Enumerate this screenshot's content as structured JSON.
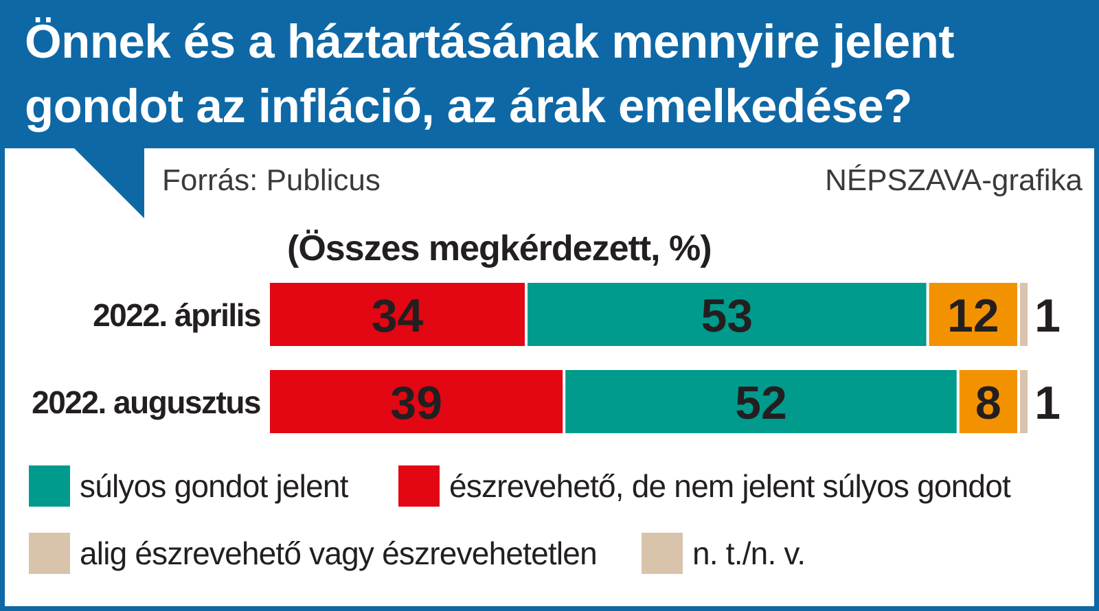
{
  "header": {
    "title": "Önnek és a háztartásának mennyire jelent gondot az infláció, az árak emelkedése?"
  },
  "source": "Forrás: Publicus",
  "credit": "NÉPSZAVA-grafika",
  "colors": {
    "header": "#0e68a6",
    "red": "#e30613",
    "teal": "#009b8d",
    "orange": "#f39200",
    "beige": "#d9c3ab"
  },
  "legend": [
    {
      "label": "súlyos gondot jelent",
      "color": "#009b8d"
    },
    {
      "label": "észrevehető, de nem jelent súlyos gondot",
      "color": "#e30613"
    },
    {
      "label": "alig észrevehető vagy észrevehetetlen",
      "color": "#d9c3ab"
    },
    {
      "label": "n. t./n. v.",
      "color": "#d9c3ab"
    }
  ],
  "chart_data": {
    "type": "bar",
    "stacked": true,
    "orientation": "horizontal",
    "title": "(Összes megkérdezett, %)",
    "categories": [
      "2022. április",
      "2022. augusztus"
    ],
    "series": [
      {
        "name": "észrevehető, de nem jelent súlyos gondot",
        "color": "#e30613",
        "values": [
          34,
          39
        ]
      },
      {
        "name": "súlyos gondot jelent",
        "color": "#009b8d",
        "values": [
          53,
          52
        ]
      },
      {
        "name": "alig észrevehető vagy észrevehetetlen",
        "color": "#f39200",
        "values": [
          12,
          8
        ]
      },
      {
        "name": "n. t./n. v.",
        "color": "#d9c3ab",
        "values": [
          1,
          1
        ]
      }
    ],
    "xlim": [
      0,
      100
    ]
  }
}
